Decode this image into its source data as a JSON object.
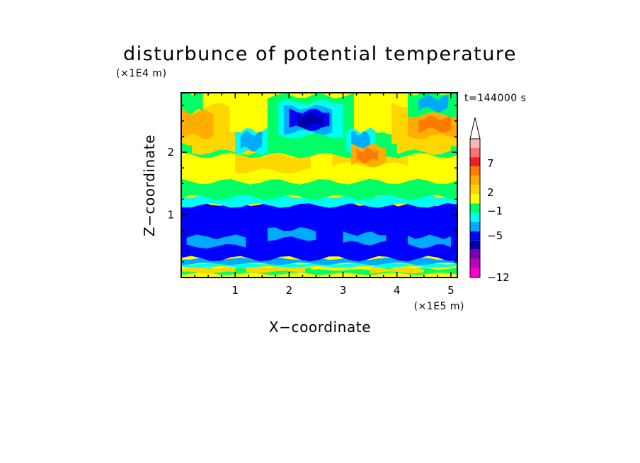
{
  "chart_data": {
    "type": "heatmap",
    "title": "disturbunce of potential temperature",
    "xlabel": "X−coordinate",
    "ylabel": "Z−coordinate",
    "x_scale_label": "(×1E5 m)",
    "y_scale_label": "(×1E4 m)",
    "time_label": "t=144000 s",
    "x_unit_factor": 100000,
    "y_unit_factor": 10000,
    "xlim": [
      0,
      512000
    ],
    "ylim": [
      0,
      29500
    ],
    "x_ticks": [
      1,
      2,
      3,
      4,
      5
    ],
    "y_ticks": [
      1,
      2
    ],
    "grid": false,
    "legend_placement": "right",
    "colorbar": {
      "labeled_levels": [
        "7",
        "2",
        "−1",
        "−5",
        "−12"
      ],
      "colors_top_to_bottom": [
        "#ffffff",
        "#f8b8b8",
        "#ff7070",
        "#ee2020",
        "#ff7a00",
        "#ffae00",
        "#ffd700",
        "#ffff00",
        "#00ff66",
        "#00ffee",
        "#00aaff",
        "#0000ff",
        "#0000aa",
        "#7a00b0",
        "#c000c0",
        "#ff00cc"
      ]
    },
    "bands": [
      {
        "z_km": [
          0,
          0.7
        ],
        "x_km": [
          0,
          512
        ],
        "level": "0 to 1",
        "color": "#ffff00"
      },
      {
        "z_km": [
          0.6,
          1.4
        ],
        "x_km": [
          0,
          512
        ],
        "level": "-1 to 0",
        "color": "#00ff66"
      },
      {
        "z_km": [
          0.8,
          1.5
        ],
        "x_km": [
          0,
          100
        ],
        "level": "1 to 2",
        "color": "#ffd700"
      },
      {
        "z_km": [
          0.9,
          1.6
        ],
        "x_km": [
          120,
          230
        ],
        "level": "1 to 2",
        "color": "#ffd700"
      },
      {
        "z_km": [
          0.8,
          1.5
        ],
        "x_km": [
          350,
          450
        ],
        "level": "1 to 2",
        "color": "#ffd700"
      },
      {
        "z_km": [
          1.2,
          1.7
        ],
        "x_km": [
          240,
          330
        ],
        "level": "0 to 1",
        "color": "#ffff00"
      },
      {
        "z_km": [
          1.7,
          2.2
        ],
        "x_km": [
          0,
          512
        ],
        "level": "-2 to -1",
        "color": "#00ffee"
      },
      {
        "z_km": [
          2.2,
          3.0
        ],
        "x_km": [
          0,
          512
        ],
        "level": "-3 to -2",
        "color": "#00aaff"
      },
      {
        "z_km": [
          3.0,
          11.8
        ],
        "x_km": [
          0,
          512
        ],
        "level": "-5 to -3",
        "color": "#0000ff"
      },
      {
        "z_km": [
          5.0,
          6.5
        ],
        "x_km": [
          10,
          120
        ],
        "level": "-3 to -2",
        "color": "#00aaff"
      },
      {
        "z_km": [
          6.2,
          7.7
        ],
        "x_km": [
          160,
          250
        ],
        "level": "-3 to -2",
        "color": "#00aaff"
      },
      {
        "z_km": [
          5.5,
          7.0
        ],
        "x_km": [
          300,
          380
        ],
        "level": "-3 to -2",
        "color": "#00aaff"
      },
      {
        "z_km": [
          5.0,
          6.5
        ],
        "x_km": [
          420,
          500
        ],
        "level": "-3 to -2",
        "color": "#00aaff"
      },
      {
        "z_km": [
          11.5,
          13.0
        ],
        "x_km": [
          0,
          512
        ],
        "level": "-2 to -1",
        "color": "#00ffee"
      },
      {
        "z_km": [
          12.8,
          16.3
        ],
        "x_km": [
          0,
          512
        ],
        "level": "-1 to 0",
        "color": "#00ff66"
      },
      {
        "z_km": [
          15.3,
          20.2
        ],
        "x_km": [
          0,
          512
        ],
        "level": "0 to 1",
        "color": "#ffff00"
      },
      {
        "z_km": [
          17.0,
          19.5
        ],
        "x_km": [
          100,
          240
        ],
        "level": "1 to 2",
        "color": "#ffd700"
      },
      {
        "z_km": [
          18.0,
          20.5
        ],
        "x_km": [
          280,
          420
        ],
        "level": "1 to 2",
        "color": "#ffd700"
      },
      {
        "z_km": [
          19.5,
          23.5
        ],
        "x_km": [
          0,
          512
        ],
        "level": "-1 to 0",
        "color": "#00ff66"
      },
      {
        "z_km": [
          20.0,
          23.5
        ],
        "x_km": [
          20,
          140
        ],
        "level": "1 to 2",
        "color": "#ffd700"
      },
      {
        "z_km": [
          20.0,
          22.5
        ],
        "x_km": [
          400,
          500
        ],
        "level": "1 to 2",
        "color": "#ffd700"
      },
      {
        "z_km": [
          23.0,
          29.5
        ],
        "x_km": [
          0,
          512
        ],
        "level": "0 to 1",
        "color": "#ffff00"
      },
      {
        "z_km": [
          21.5,
          27.5
        ],
        "x_km": [
          0,
          90
        ],
        "level": "1 to 2",
        "color": "#ffd700"
      },
      {
        "z_km": [
          22.5,
          26.5
        ],
        "x_km": [
          0,
          60
        ],
        "level": "2 to 3",
        "color": "#ffae00"
      },
      {
        "z_km": [
          21.0,
          27.5
        ],
        "x_km": [
          390,
          512
        ],
        "level": "1 to 2",
        "color": "#ffd700"
      },
      {
        "z_km": [
          22.5,
          26.5
        ],
        "x_km": [
          420,
          512
        ],
        "level": "2 to 3",
        "color": "#ffae00"
      },
      {
        "z_km": [
          23.5,
          25.5
        ],
        "x_km": [
          440,
          500
        ],
        "level": "3 to 4",
        "color": "#ff7a00"
      },
      {
        "z_km": [
          22.0,
          29.0
        ],
        "x_km": [
          160,
          320
        ],
        "level": "-1 to 0",
        "color": "#00ff66"
      },
      {
        "z_km": [
          22.6,
          28.0
        ],
        "x_km": [
          180,
          300
        ],
        "level": "-2 to -1",
        "color": "#00ffee"
      },
      {
        "z_km": [
          23.2,
          27.2
        ],
        "x_km": [
          190,
          280
        ],
        "level": "-3 to -2",
        "color": "#00aaff"
      },
      {
        "z_km": [
          23.8,
          26.6
        ],
        "x_km": [
          200,
          275
        ],
        "level": "-5 to -3",
        "color": "#0000ff"
      },
      {
        "z_km": [
          24.2,
          26.0
        ],
        "x_km": [
          215,
          265
        ],
        "level": "-6 to -5",
        "color": "#0000aa"
      },
      {
        "z_km": [
          20.0,
          23.5
        ],
        "x_km": [
          100,
          160
        ],
        "level": "-2 to -1",
        "color": "#00ffee"
      },
      {
        "z_km": [
          20.5,
          23.0
        ],
        "x_km": [
          110,
          150
        ],
        "level": "-3 to -2",
        "color": "#00aaff"
      },
      {
        "z_km": [
          20.0,
          23.5
        ],
        "x_km": [
          305,
          360
        ],
        "level": "-2 to -1",
        "color": "#00ffee"
      },
      {
        "z_km": [
          20.4,
          23.0
        ],
        "x_km": [
          315,
          350
        ],
        "level": "-3 to -2",
        "color": "#00aaff"
      },
      {
        "z_km": [
          18.0,
          21.0
        ],
        "x_km": [
          315,
          380
        ],
        "level": "2 to 3",
        "color": "#ffae00"
      },
      {
        "z_km": [
          18.6,
          20.4
        ],
        "x_km": [
          325,
          365
        ],
        "level": "3 to 4",
        "color": "#ff7a00"
      },
      {
        "z_km": [
          26.0,
          29.5
        ],
        "x_km": [
          420,
          512
        ],
        "level": "-1 to 0",
        "color": "#00ff66"
      },
      {
        "z_km": [
          26.8,
          28.8
        ],
        "x_km": [
          440,
          495
        ],
        "level": "-3 to -2",
        "color": "#00aaff"
      },
      {
        "z_km": [
          26.5,
          29.5
        ],
        "x_km": [
          0,
          40
        ],
        "level": "-1 to 0",
        "color": "#00ff66"
      }
    ]
  }
}
